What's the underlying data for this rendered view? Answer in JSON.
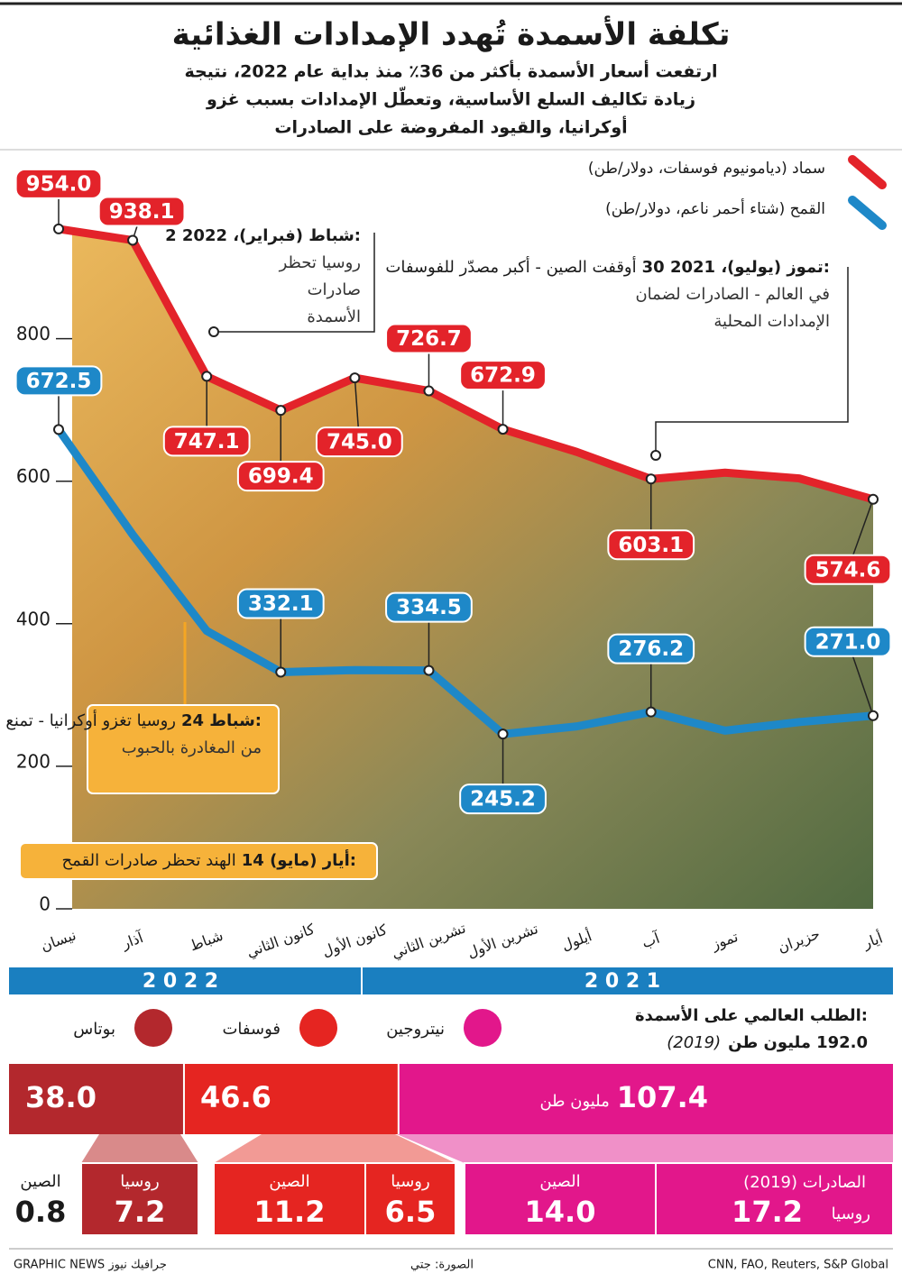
{
  "chart_data": {
    "type": "line",
    "title": "تكلفة الأسمدة تُهدد الإمدادات الغذائية",
    "subtitle": [
      "ارتفعت أسعار الأسمدة بأكثر من 36٪ منذ بداية عام 2022، نتيجة",
      "زيادة تكاليف السلع الأساسية، وتعطّل الإمدادات بسبب غزو",
      "أوكرانيا، والقيود المفروضة على الصادرات"
    ],
    "categories": [
      "نيسان",
      "آذار",
      "شباط",
      "كانون الثاني",
      "كانون الأول",
      "تشرين الثاني",
      "تشرين الأول",
      "أيلول",
      "آب",
      "تموز",
      "حزيران",
      "أيار"
    ],
    "years": [
      {
        "label": "2 0 2 2"
      },
      {
        "label": "2 0 2 1"
      }
    ],
    "series": [
      {
        "name": "سماد (ديامونيوم فوسفات، دولار/طن)",
        "color": "#e3232a",
        "values": [
          954.0,
          938.1,
          747.1,
          699.4,
          745.0,
          726.7,
          672.9,
          641,
          603.1,
          612,
          604,
          574.6
        ],
        "value_labels": [
          "954.0",
          "938.1",
          "747.1",
          "699.4",
          "745.0",
          "726.7",
          "672.9",
          null,
          "603.1",
          null,
          null,
          "574.6"
        ]
      },
      {
        "name": "القمح (شتاء أحمر ناعم، دولار/طن)",
        "color": "#1e88c8",
        "values": [
          672.5,
          525,
          390,
          332.1,
          335,
          334.5,
          245.2,
          256,
          276.2,
          250,
          262,
          271.0
        ],
        "value_labels": [
          "672.5",
          null,
          null,
          "332.1",
          null,
          "334.5",
          "245.2",
          null,
          "276.2",
          null,
          null,
          "271.0"
        ]
      }
    ],
    "ylim": [
      0,
      1050
    ],
    "yticks": [
      0,
      200,
      400,
      600,
      800
    ],
    "annotations": [
      {
        "heading": "2 شباط (فبراير)، 2022:",
        "lines": [
          "روسيا تحظر",
          "صادرات",
          "الأسمدة"
        ]
      },
      {
        "heading": "30 تموز (يوليو)، 2021:",
        "lines": [
          "أوقفت الصين - أكبر مصدّر للفوسفات",
          "في العالم - الصادرات لضمان",
          "الإمدادات المحلية"
        ]
      },
      {
        "heading": "24 شباط:",
        "lines": [
          "روسيا تغزو أوكرانيا - تمنع السفن",
          "من المغادرة بالحبوب"
        ]
      },
      {
        "heading": "14 أيار (مايو):",
        "lines": [
          "الهند تحظر صادرات القمح"
        ]
      }
    ]
  },
  "demand": {
    "title": "الطلب العالمي على الأسمدة:",
    "total": "192.0",
    "unit": "مليون طن",
    "year": "(2019)",
    "segments": [
      {
        "name": "بوتاس",
        "color": "#b3282d",
        "value": 38.0,
        "value_label": "38.0"
      },
      {
        "name": "فوسفات",
        "color": "#e52521",
        "value": 46.6,
        "value_label": "46.6"
      },
      {
        "name": "نيتروجين",
        "color": "#e2178b",
        "value": 107.4,
        "value_label": "107.4"
      }
    ]
  },
  "exports": {
    "title": "الصادرات (2019)",
    "items": [
      {
        "country": "روسيا",
        "value": "17.2"
      },
      {
        "country": "الصين",
        "value": "14.0"
      },
      {
        "country": "روسيا",
        "value": "6.5"
      },
      {
        "country": "الصين",
        "value": "11.2"
      },
      {
        "country": "روسيا",
        "value": "7.2"
      },
      {
        "country": "الصين",
        "value": "0.8"
      }
    ]
  },
  "footer": {
    "sources": "CNN, FAO, Reuters, S&P Global",
    "photo": "الصورة: جتي",
    "brand": "GRAPHIC NEWS جرافيك نيوز"
  }
}
